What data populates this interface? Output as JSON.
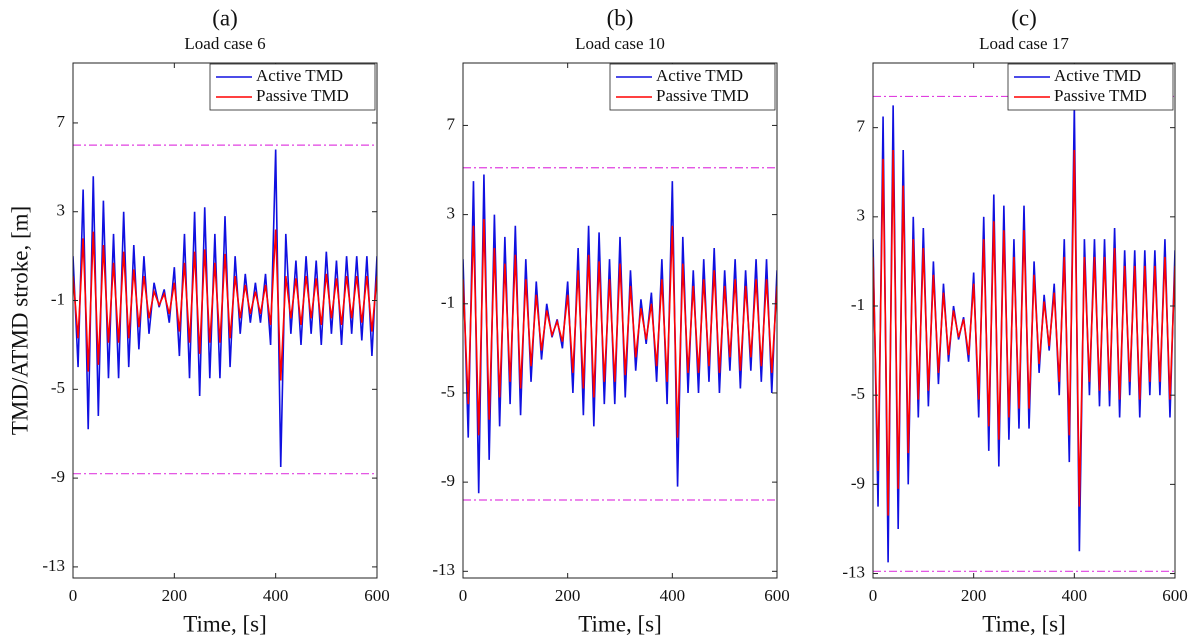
{
  "chart_data": [
    {
      "type": "line",
      "label": "(a)",
      "title": "Load case 6",
      "y_label": "TMD/ATMD  stroke, [m]",
      "x_label": "Time, [s]",
      "xlim": [
        0,
        600
      ],
      "xticks": [
        0,
        200,
        400,
        600
      ],
      "ylim": [
        -13.5,
        9.7
      ],
      "yticks": [
        -13,
        -9,
        -5,
        -1,
        3,
        7
      ],
      "legend": "upper right",
      "hlines": [
        {
          "value": 6.0,
          "color": "#e040e0"
        },
        {
          "value": -8.8,
          "color": "#e040e0"
        }
      ],
      "x": [
        0,
        10,
        20,
        30,
        40,
        50,
        60,
        70,
        80,
        90,
        100,
        110,
        120,
        130,
        140,
        150,
        160,
        170,
        180,
        190,
        200,
        210,
        220,
        230,
        240,
        250,
        260,
        270,
        280,
        290,
        300,
        310,
        320,
        330,
        340,
        350,
        360,
        370,
        380,
        390,
        400,
        410,
        420,
        430,
        440,
        450,
        460,
        470,
        480,
        490,
        500,
        510,
        520,
        530,
        540,
        550,
        560,
        570,
        580,
        590,
        600
      ],
      "series": [
        {
          "name": "Active TMD",
          "color": "#1010e0",
          "values": [
            1,
            -4,
            4,
            -6.8,
            4.6,
            -6.2,
            3.5,
            -4.5,
            2,
            -4.5,
            3,
            -4,
            1.5,
            -3.2,
            1,
            -2.5,
            -0.2,
            -1.3,
            -0.5,
            -2,
            0.5,
            -3.5,
            2,
            -4.5,
            3,
            -5.3,
            3.2,
            -4.5,
            2,
            -4.5,
            2.8,
            -4,
            1,
            -2.5,
            0.2,
            -2,
            -0.2,
            -2,
            0.2,
            -3,
            5.8,
            -8.5,
            2,
            -2.5,
            0.8,
            -3,
            1,
            -2.5,
            0.8,
            -3,
            1.2,
            -2.5,
            0.8,
            -3,
            1,
            -2.5,
            1,
            -2.8,
            1,
            -3.5,
            1
          ]
        },
        {
          "name": "Passive TMD",
          "color": "#ff0000",
          "values": [
            0.1,
            -2.7,
            1.8,
            -4.2,
            2.1,
            -3.9,
            1.5,
            -2.9,
            0.7,
            -2.9,
            1.2,
            -2.7,
            0.4,
            -2.2,
            0.1,
            -1.8,
            -0.6,
            -1.2,
            -0.7,
            -1.6,
            -0.2,
            -2.4,
            0.7,
            -2.9,
            1.2,
            -3.4,
            1.3,
            -2.9,
            0.7,
            -2.9,
            1.1,
            -2.7,
            0.1,
            -1.8,
            -0.3,
            -1.6,
            -0.6,
            -1.6,
            -0.3,
            -2.1,
            2.2,
            -4.6,
            0.1,
            -1.8,
            0,
            -2.1,
            0.1,
            -1.8,
            0,
            -2.1,
            0.2,
            -1.8,
            0,
            -2.1,
            0.1,
            -1.8,
            0.1,
            -2,
            0.1,
            -2.4,
            0.1
          ]
        }
      ]
    },
    {
      "type": "line",
      "label": "(b)",
      "title": "Load case 10",
      "x_label": "Time, [s]",
      "xlim": [
        0,
        600
      ],
      "xticks": [
        0,
        200,
        400,
        600
      ],
      "ylim": [
        -13.3,
        9.8
      ],
      "yticks": [
        -13,
        -9,
        -5,
        -1,
        3,
        7
      ],
      "legend": "upper right",
      "hlines": [
        {
          "value": 5.1,
          "color": "#e040e0"
        },
        {
          "value": -9.8,
          "color": "#e040e0"
        }
      ],
      "x": [
        0,
        10,
        20,
        30,
        40,
        50,
        60,
        70,
        80,
        90,
        100,
        110,
        120,
        130,
        140,
        150,
        160,
        170,
        180,
        190,
        200,
        210,
        220,
        230,
        240,
        250,
        260,
        270,
        280,
        290,
        300,
        310,
        320,
        330,
        340,
        350,
        360,
        370,
        380,
        390,
        400,
        410,
        420,
        430,
        440,
        450,
        460,
        470,
        480,
        490,
        500,
        510,
        520,
        530,
        540,
        550,
        560,
        570,
        580,
        590,
        600
      ],
      "series": [
        {
          "name": "Active TMD",
          "color": "#1010e0",
          "values": [
            1,
            -7,
            4.5,
            -9.5,
            4.8,
            -8,
            3,
            -6.5,
            2,
            -5.5,
            2.5,
            -6,
            1,
            -4.5,
            0,
            -3.5,
            -1,
            -2.5,
            -1.7,
            -3,
            0,
            -5,
            1.5,
            -6,
            2.5,
            -6.5,
            2.2,
            -5.5,
            1,
            -5.5,
            2,
            -5.2,
            0.5,
            -4,
            -0.8,
            -2.8,
            -0.5,
            -4.5,
            1,
            -5.5,
            4.5,
            -9.2,
            2,
            -5,
            0.5,
            -5,
            1,
            -4.5,
            1.5,
            -5,
            0.5,
            -4,
            1,
            -4.8,
            0.5,
            -4,
            1,
            -4.5,
            1,
            -5,
            0.5
          ]
        },
        {
          "name": "Passive TMD",
          "color": "#ff0000",
          "values": [
            0.1,
            -5.5,
            2.5,
            -6.9,
            2.8,
            -6.2,
            1.5,
            -5.2,
            0.8,
            -4.5,
            1.2,
            -4.8,
            0.1,
            -3.8,
            -0.6,
            -3.1,
            -1.3,
            -2.4,
            -1.8,
            -2.7,
            -0.6,
            -4.1,
            0.5,
            -4.8,
            1.2,
            -5.2,
            0.9,
            -4.5,
            0.1,
            -4.5,
            0.8,
            -4.2,
            -0.2,
            -3.4,
            -1.2,
            -2.6,
            -1,
            -3.8,
            0.1,
            -4.5,
            2.5,
            -7,
            0.8,
            -4.1,
            -0.2,
            -4.1,
            0.1,
            -3.8,
            0.5,
            -4.1,
            -0.2,
            -3.4,
            0.1,
            -4,
            -0.2,
            -3.4,
            0.1,
            -3.8,
            0.1,
            -4.1,
            -0.2
          ]
        }
      ]
    },
    {
      "type": "line",
      "label": "(c)",
      "title": "Load case 17",
      "x_label": "Time, [s]",
      "xlim": [
        0,
        600
      ],
      "xticks": [
        0,
        200,
        400,
        600
      ],
      "ylim": [
        -13.2,
        9.9
      ],
      "yticks": [
        -13,
        -9,
        -5,
        -1,
        3,
        7
      ],
      "legend": "upper right",
      "hlines": [
        {
          "value": 8.4,
          "color": "#e040e0"
        },
        {
          "value": -12.9,
          "color": "#e040e0"
        }
      ],
      "x": [
        0,
        10,
        20,
        30,
        40,
        50,
        60,
        70,
        80,
        90,
        100,
        110,
        120,
        130,
        140,
        150,
        160,
        170,
        180,
        190,
        200,
        210,
        220,
        230,
        240,
        250,
        260,
        270,
        280,
        290,
        300,
        310,
        320,
        330,
        340,
        350,
        360,
        370,
        380,
        390,
        400,
        410,
        420,
        430,
        440,
        450,
        460,
        470,
        480,
        490,
        500,
        510,
        520,
        530,
        540,
        550,
        560,
        570,
        580,
        590,
        600
      ],
      "series": [
        {
          "name": "Active TMD",
          "color": "#1010e0",
          "values": [
            2,
            -10,
            7.5,
            -12.5,
            8,
            -11,
            6,
            -9,
            3,
            -6,
            2.5,
            -5.5,
            1,
            -4.5,
            0,
            -3.5,
            -1,
            -2.5,
            -1.5,
            -3.5,
            0.5,
            -6,
            3,
            -7.5,
            4,
            -8.2,
            3.5,
            -7,
            2,
            -6.5,
            3.5,
            -6.5,
            1,
            -4,
            -0.5,
            -3,
            0,
            -5,
            2,
            -8,
            8,
            -12,
            2,
            -5,
            2,
            -5.5,
            2,
            -5.5,
            2.5,
            -6,
            1.5,
            -5,
            1.5,
            -6,
            1.5,
            -5,
            1.5,
            -5,
            2,
            -6,
            1.5
          ]
        },
        {
          "name": "Passive TMD",
          "color": "#ff0000",
          "values": [
            1.2,
            -8.4,
            5.6,
            -10.4,
            6,
            -9.2,
            4.4,
            -7.6,
            2,
            -5.2,
            1.6,
            -4.8,
            0.4,
            -4,
            -0.4,
            -3.2,
            -1.2,
            -2.4,
            -1.6,
            -3.2,
            0,
            -5.2,
            2,
            -6.4,
            2.8,
            -7,
            2.4,
            -6,
            1.2,
            -5.6,
            2.4,
            -5.6,
            0.4,
            -3.6,
            -0.8,
            -2.8,
            -0.4,
            -4.4,
            1.2,
            -6.8,
            6,
            -10,
            1.2,
            -4.4,
            1.2,
            -4.8,
            1.2,
            -4.8,
            1.6,
            -5.2,
            0.8,
            -4.4,
            0.8,
            -5.2,
            0.8,
            -4.4,
            0.8,
            -4.4,
            1.2,
            -5.2,
            0.8
          ]
        }
      ]
    }
  ]
}
